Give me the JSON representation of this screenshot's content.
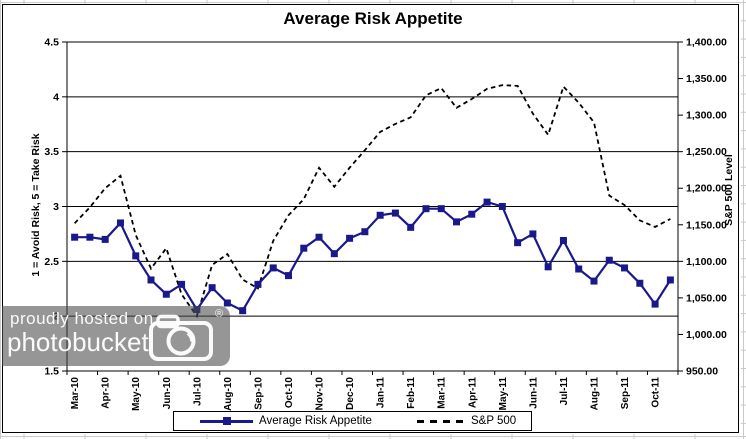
{
  "title": "Average Risk Appetite",
  "legend": {
    "items": [
      {
        "label": "Average Risk Appetite",
        "series": "risk_appetite"
      },
      {
        "label": "S&P 500",
        "series": "sp500"
      }
    ]
  },
  "watermark": {
    "line1": "proudly hosted on",
    "line2": "photobucket",
    "registered_mark": "®"
  },
  "colors": {
    "risk_line": "#19198C",
    "sp500_line": "#000000",
    "grid_line": "#000000",
    "text": "#000000",
    "spreadsheet_grid": "#C9C9C9",
    "watermark_bg": "rgba(74,74,74,0.58)",
    "watermark_text": "rgba(255,255,255,0.95)"
  },
  "chart_data": {
    "type": "line",
    "title": "Average Risk Appetite",
    "grid": "horizontal-only",
    "legend_position": "bottom",
    "points_per_month_label": 2,
    "x_tick_labels": [
      "Mar-10",
      "Apr-10",
      "May-10",
      "Jun-10",
      "Jul-10",
      "Aug-10",
      "Sep-10",
      "Oct-10",
      "Nov-10",
      "Dec-10",
      "Jan-11",
      "Feb-11",
      "Mar-11",
      "Apr-11",
      "May-11",
      "Jun-11",
      "Jul-11",
      "Aug-11",
      "Sep-11",
      "Oct-11"
    ],
    "y_axis_left": {
      "label": "1 = Avoid Risk, 5 = Take Risk",
      "min": 1.5,
      "max": 4.5,
      "tick_labels": [
        "4.5",
        "4",
        "3.5",
        "3",
        "2.5",
        "2",
        "1.5"
      ]
    },
    "y_axis_right": {
      "label": "S&P 500 Level",
      "min": 950,
      "max": 1400,
      "tick_labels": [
        "1,400.00",
        "1,350.00",
        "1,300.00",
        "1,250.00",
        "1,200.00",
        "1,150.00",
        "1,100.00",
        "1,050.00",
        "1,000.00",
        "950.00"
      ]
    },
    "series": [
      {
        "name": "Average Risk Appetite",
        "axis": "left",
        "style": "solid-square-markers",
        "color": "#19198C",
        "values": [
          2.72,
          2.72,
          2.7,
          2.85,
          2.55,
          2.33,
          2.2,
          2.29,
          2.06,
          2.26,
          2.12,
          2.05,
          2.29,
          2.44,
          2.37,
          2.62,
          2.72,
          2.57,
          2.71,
          2.77,
          2.92,
          2.94,
          2.81,
          2.98,
          2.98,
          2.86,
          2.93,
          3.04,
          3.0,
          2.67,
          2.75,
          2.45,
          2.69,
          2.43,
          2.32,
          2.51,
          2.44,
          2.3,
          2.11,
          2.33
        ]
      },
      {
        "name": "S&P 500",
        "axis": "right",
        "style": "dashed",
        "color": "#000000",
        "values": [
          1152,
          1174,
          1200,
          1217,
          1136,
          1090,
          1118,
          1055,
          1025,
          1095,
          1110,
          1075,
          1063,
          1128,
          1163,
          1185,
          1228,
          1202,
          1228,
          1252,
          1277,
          1288,
          1297,
          1327,
          1337,
          1310,
          1322,
          1336,
          1341,
          1340,
          1302,
          1273,
          1339,
          1317,
          1290,
          1190,
          1177,
          1156,
          1147,
          1158
        ]
      }
    ]
  }
}
